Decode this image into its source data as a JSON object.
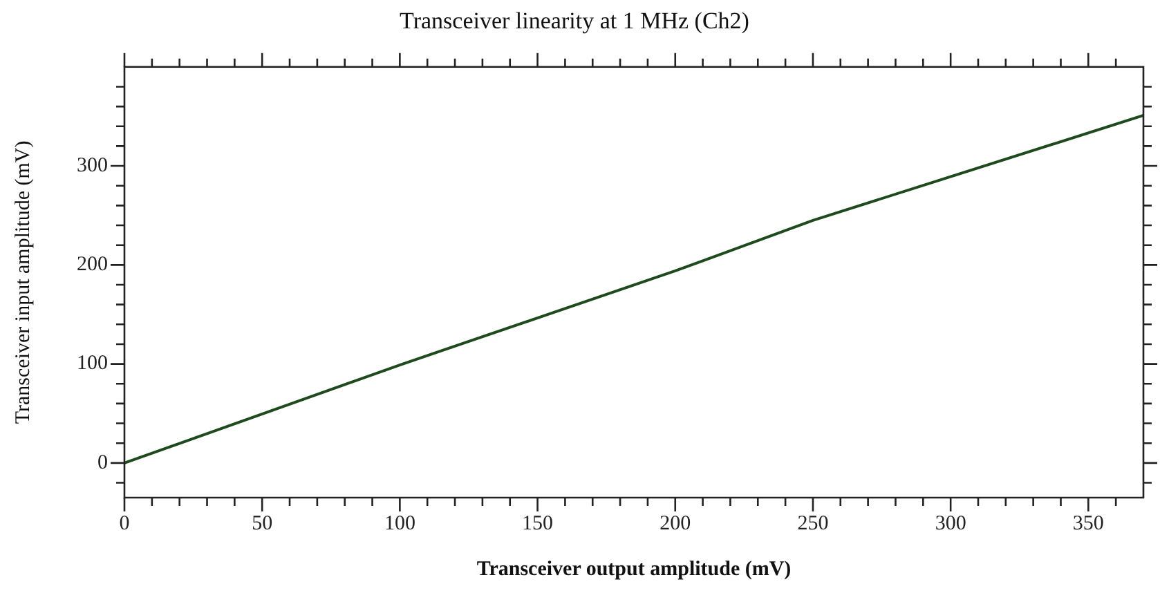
{
  "chart_data": {
    "type": "line",
    "title": "Transceiver linearity at 1 MHz (Ch2)",
    "xlabel": "Transceiver output amplitude (mV)",
    "ylabel": "Transceiver input amplitude (mV)",
    "x": [
      0,
      100,
      200,
      250,
      370
    ],
    "series": [
      {
        "color": "#1e4a1e",
        "values": [
          0,
          99,
          194,
          245,
          351
        ]
      }
    ],
    "xlim": [
      0,
      370
    ],
    "xticks": [
      0,
      {
        "value": 10,
        "label": null
      },
      {
        "value": 20,
        "label": null
      },
      {
        "value": 30,
        "label": null
      },
      {
        "value": 40,
        "label": null
      },
      50,
      {
        "value": 60,
        "label": null
      },
      {
        "value": 70,
        "label": null
      },
      {
        "value": 80,
        "label": null
      },
      {
        "value": 90,
        "label": null
      },
      100,
      {
        "value": 110,
        "label": null
      },
      {
        "value": 120,
        "label": null
      },
      {
        "value": 130,
        "label": null
      },
      {
        "value": 140,
        "label": null
      },
      150,
      {
        "value": 160,
        "label": null
      },
      {
        "value": 170,
        "label": null
      },
      {
        "value": 180,
        "label": null
      },
      {
        "value": 190,
        "label": null
      },
      200,
      {
        "value": 210,
        "label": null
      },
      {
        "value": 220,
        "label": null
      },
      {
        "value": 230,
        "label": null
      },
      {
        "value": 240,
        "label": null
      },
      250,
      {
        "value": 260,
        "label": null
      },
      {
        "value": 270,
        "label": null
      },
      {
        "value": 280,
        "label": null
      },
      {
        "value": 290,
        "label": null
      },
      300,
      {
        "value": 310,
        "label": null
      },
      {
        "value": 320,
        "label": null
      },
      {
        "value": 330,
        "label": null
      },
      {
        "value": 340,
        "label": null
      },
      350,
      {
        "value": 360,
        "label": null
      }
    ],
    "ylim": [
      -35,
      400
    ],
    "yticks": [
      {
        "value": -20,
        "label": null
      },
      0,
      {
        "value": 20,
        "label": null
      },
      {
        "value": 40,
        "label": null
      },
      {
        "value": 60,
        "label": null
      },
      {
        "value": 80,
        "label": null
      },
      100,
      {
        "value": 120,
        "label": null
      },
      {
        "value": 140,
        "label": null
      },
      {
        "value": 160,
        "label": null
      },
      {
        "value": 180,
        "label": null
      },
      200,
      {
        "value": 220,
        "label": null
      },
      {
        "value": 240,
        "label": null
      },
      {
        "value": 260,
        "label": null
      },
      {
        "value": 280,
        "label": null
      },
      300,
      {
        "value": 320,
        "label": null
      },
      {
        "value": 340,
        "label": null
      },
      {
        "value": 360,
        "label": null
      },
      {
        "value": 380,
        "label": null
      }
    ],
    "grid": false,
    "legend": false,
    "marker": "none",
    "line_style": "solid"
  }
}
